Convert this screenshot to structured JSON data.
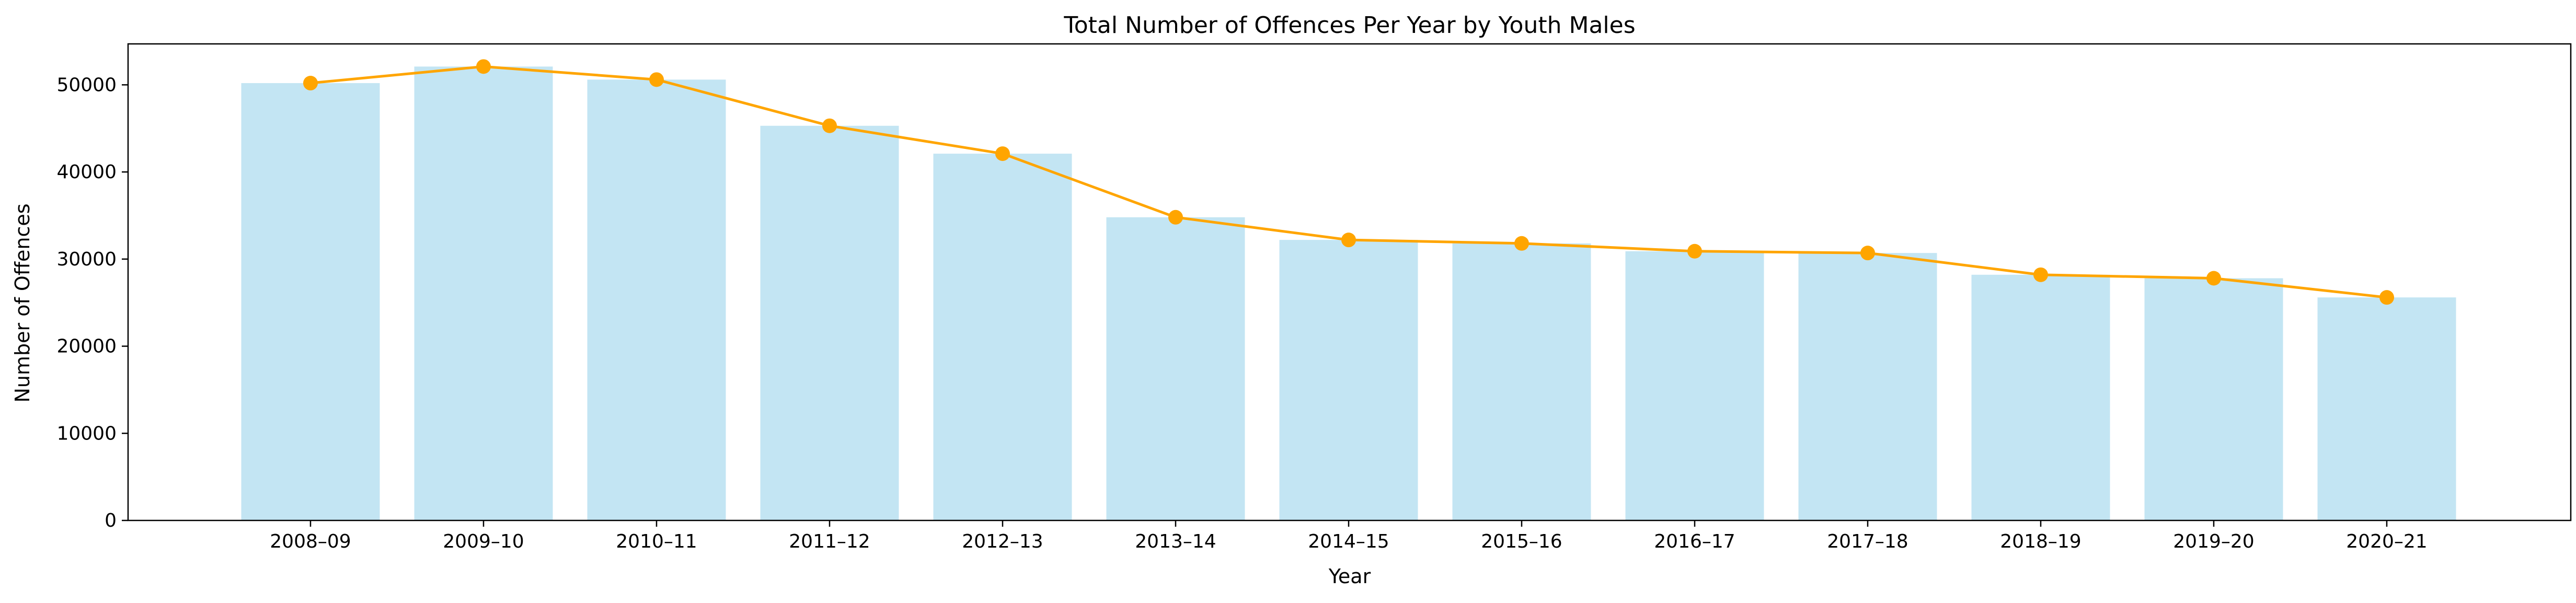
{
  "chart_data": {
    "type": "bar",
    "title": "Total Number of Offences Per Year by Youth Males",
    "xlabel": "Year",
    "ylabel": "Number of Offences",
    "ylim": [
      0,
      54700
    ],
    "yticks": [
      0,
      10000,
      20000,
      30000,
      40000,
      50000
    ],
    "ytick_labels": [
      "0",
      "10000",
      "20000",
      "30000",
      "40000",
      "50000"
    ],
    "grid": false,
    "categories": [
      "2008–09",
      "2009–10",
      "2010–11",
      "2011–12",
      "2012–13",
      "2013–14",
      "2014–15",
      "2015–16",
      "2016–17",
      "2017–18",
      "2018–19",
      "2019–20",
      "2020–21"
    ],
    "values": [
      50200,
      52100,
      50600,
      45300,
      42100,
      34800,
      32200,
      31800,
      30900,
      30700,
      28200,
      27800,
      25600
    ],
    "line_overlay": {
      "type": "line",
      "marker": "circle",
      "values": [
        50200,
        52100,
        50600,
        45300,
        42100,
        34800,
        32200,
        31800,
        30900,
        30700,
        28200,
        27800,
        25600
      ]
    },
    "colors": {
      "bar": "#c3e5f3",
      "line": "#ffa500",
      "axis": "#000000"
    }
  }
}
